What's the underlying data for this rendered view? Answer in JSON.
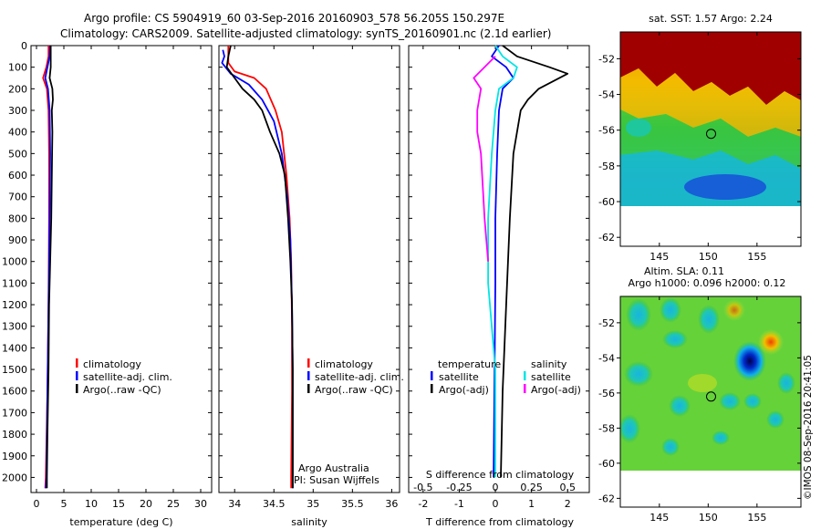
{
  "header": {
    "line1": "Argo profile: CS 5904919_60 03-Sep-2016 20160903_578 56.205S 150.297E",
    "line2": "Climatology: CARS2009. Satellite-adjusted climatology: synTS_20160901.nc (2.1d earlier)"
  },
  "colors": {
    "climatology": "#ff0000",
    "satellite": "#0000ff",
    "argo": "#000000",
    "sat_salinity": "#00e5e5",
    "argo_salinity": "#ff00ff"
  },
  "legend_profiles": [
    "climatology",
    "satellite-adj. clim.",
    "Argo(..raw -QC)"
  ],
  "legend_diff": {
    "temperature_title": "temperature",
    "salinity_title": "salinity",
    "temp_items": [
      "satellite",
      "Argo(-adj)"
    ],
    "sal_items": [
      "satellite",
      "Argo(-adj)"
    ]
  },
  "credits": {
    "line1": "Argo Australia",
    "line2": "PI: Susan Wijffels"
  },
  "imos_stamp": "©IMOS 08-Sep-2016 20:41:05",
  "maps": {
    "sst_title": "sat. SST: 1.57 Argo: 2.24",
    "sla_title1": "Altim. SLA: 0.11",
    "sla_title2": "Argo h1000: 0.096 h2000: 0.12",
    "lat_ticks": [
      "-52",
      "-54",
      "-56",
      "-58",
      "-60",
      "-62"
    ],
    "lon_ticks": [
      "145",
      "150",
      "155"
    ],
    "float_position": {
      "lon": 150.297,
      "lat": -56.205
    },
    "lon_range": [
      141,
      159.5
    ],
    "lat_range": [
      -62.5,
      -50.5
    ],
    "data_lat_min": -60
  },
  "chart_data": [
    {
      "type": "line",
      "xlabel": "temperature (deg C)",
      "ylabel": "",
      "xlim": [
        -1,
        32
      ],
      "ylim": [
        2070,
        0
      ],
      "xticks": [
        "0",
        "5",
        "10",
        "15",
        "20",
        "25",
        "30"
      ],
      "yticks": [
        "0",
        "100",
        "200",
        "300",
        "400",
        "500",
        "600",
        "700",
        "800",
        "900",
        "1000",
        "1100",
        "1200",
        "1300",
        "1400",
        "1500",
        "1600",
        "1700",
        "1800",
        "1900",
        "2000"
      ],
      "series": [
        {
          "name": "climatology",
          "points": [
            [
              2.2,
              0
            ],
            [
              2.2,
              50
            ],
            [
              1.8,
              100
            ],
            [
              1.2,
              150
            ],
            [
              1.9,
              200
            ],
            [
              2.2,
              300
            ],
            [
              2.3,
              500
            ],
            [
              2.3,
              800
            ],
            [
              2.2,
              1200
            ],
            [
              2.0,
              1600
            ],
            [
              1.7,
              2000
            ],
            [
              1.6,
              2050
            ]
          ]
        },
        {
          "name": "satellite-adj. clim.",
          "points": [
            [
              2.5,
              0
            ],
            [
              2.4,
              50
            ],
            [
              2.0,
              100
            ],
            [
              1.6,
              150
            ],
            [
              2.1,
              200
            ],
            [
              2.4,
              300
            ],
            [
              2.5,
              500
            ],
            [
              2.4,
              800
            ],
            [
              2.2,
              1200
            ],
            [
              2.0,
              1600
            ],
            [
              1.8,
              2000
            ],
            [
              1.7,
              2050
            ]
          ]
        },
        {
          "name": "Argo(..raw -QC)",
          "points": [
            [
              2.6,
              0
            ],
            [
              2.6,
              100
            ],
            [
              2.4,
              150
            ],
            [
              2.9,
              200
            ],
            [
              3.0,
              250
            ],
            [
              2.8,
              300
            ],
            [
              2.9,
              400
            ],
            [
              2.8,
              600
            ],
            [
              2.7,
              800
            ],
            [
              2.5,
              1000
            ],
            [
              2.3,
              1200
            ],
            [
              2.2,
              1500
            ],
            [
              2.0,
              1800
            ],
            [
              1.9,
              2000
            ],
            [
              1.9,
              2050
            ]
          ]
        }
      ]
    },
    {
      "type": "line",
      "xlabel": "salinity",
      "ylabel": "",
      "xlim": [
        33.8,
        36.1
      ],
      "ylim": [
        2070,
        0
      ],
      "xticks": [
        "34",
        "34.5",
        "35",
        "35.5",
        "36"
      ],
      "series": [
        {
          "name": "climatology",
          "points": [
            [
              33.92,
              0
            ],
            [
              33.92,
              80
            ],
            [
              34.0,
              120
            ],
            [
              34.25,
              150
            ],
            [
              34.4,
              200
            ],
            [
              34.52,
              300
            ],
            [
              34.6,
              400
            ],
            [
              34.66,
              600
            ],
            [
              34.7,
              800
            ],
            [
              34.72,
              1000
            ],
            [
              34.73,
              1300
            ],
            [
              34.73,
              1600
            ],
            [
              34.72,
              2000
            ],
            [
              34.72,
              2050
            ]
          ]
        },
        {
          "name": "satellite-adj. clim.",
          "points": [
            [
              33.85,
              20
            ],
            [
              33.87,
              50
            ],
            [
              33.84,
              80
            ],
            [
              33.95,
              130
            ],
            [
              34.18,
              180
            ],
            [
              34.35,
              250
            ],
            [
              34.5,
              350
            ],
            [
              34.6,
              500
            ],
            [
              34.67,
              700
            ],
            [
              34.71,
              900
            ],
            [
              34.73,
              1200
            ],
            [
              34.74,
              1500
            ],
            [
              34.74,
              1800
            ],
            [
              34.74,
              2050
            ]
          ]
        },
        {
          "name": "Argo(..raw -QC)",
          "points": [
            [
              33.95,
              0
            ],
            [
              33.92,
              50
            ],
            [
              33.9,
              100
            ],
            [
              34.0,
              150
            ],
            [
              34.1,
              200
            ],
            [
              34.25,
              250
            ],
            [
              34.35,
              300
            ],
            [
              34.45,
              400
            ],
            [
              34.57,
              500
            ],
            [
              34.64,
              600
            ],
            [
              34.68,
              800
            ],
            [
              34.71,
              1000
            ],
            [
              34.73,
              1200
            ],
            [
              34.74,
              1500
            ],
            [
              34.74,
              1800
            ],
            [
              34.74,
              2050
            ]
          ]
        }
      ]
    },
    {
      "type": "line",
      "xlabel": "T difference from climatology",
      "ylabel": "",
      "x2label": "S difference from climatology",
      "xlim": [
        -2.4,
        2.6
      ],
      "ylim": [
        2070,
        0
      ],
      "xticks": [
        "-2",
        "-1",
        "0",
        "1",
        "2"
      ],
      "x2ticks": [
        "-0.5",
        "-0.25",
        "0",
        "0.25",
        "0.5"
      ],
      "series": [
        {
          "name": "temperature satellite",
          "points": [
            [
              0.1,
              0
            ],
            [
              -0.1,
              50
            ],
            [
              0.3,
              100
            ],
            [
              0.5,
              150
            ],
            [
              0.2,
              200
            ],
            [
              0.1,
              300
            ],
            [
              0.05,
              500
            ],
            [
              0.0,
              800
            ],
            [
              0.0,
              1100
            ],
            [
              -0.02,
              1500
            ],
            [
              -0.05,
              2000
            ]
          ]
        },
        {
          "name": "temperature Argo(-adj)",
          "points": [
            [
              0.2,
              0
            ],
            [
              0.6,
              50
            ],
            [
              1.5,
              100
            ],
            [
              2.0,
              130
            ],
            [
              1.2,
              200
            ],
            [
              0.9,
              250
            ],
            [
              0.7,
              300
            ],
            [
              0.6,
              400
            ],
            [
              0.5,
              500
            ],
            [
              0.4,
              800
            ],
            [
              0.3,
              1200
            ],
            [
              0.2,
              1600
            ],
            [
              0.15,
              2000
            ]
          ]
        },
        {
          "name": "salinity satellite",
          "points": [
            [
              0.0,
              0
            ],
            [
              0.2,
              50
            ],
            [
              0.6,
              100
            ],
            [
              0.5,
              150
            ],
            [
              0.1,
              200
            ],
            [
              0.0,
              300
            ],
            [
              -0.1,
              500
            ],
            [
              -0.2,
              800
            ],
            [
              -0.2,
              1100
            ],
            [
              0.0,
              1500
            ],
            [
              0.0,
              2000
            ]
          ]
        },
        {
          "name": "salinity Argo(-adj)",
          "points": [
            [
              0.0,
              50
            ],
            [
              -0.6,
              150
            ],
            [
              -0.4,
              200
            ],
            [
              -0.5,
              300
            ],
            [
              -0.5,
              400
            ],
            [
              -0.4,
              500
            ],
            [
              -0.3,
              800
            ],
            [
              -0.2,
              1000
            ]
          ]
        }
      ]
    }
  ]
}
